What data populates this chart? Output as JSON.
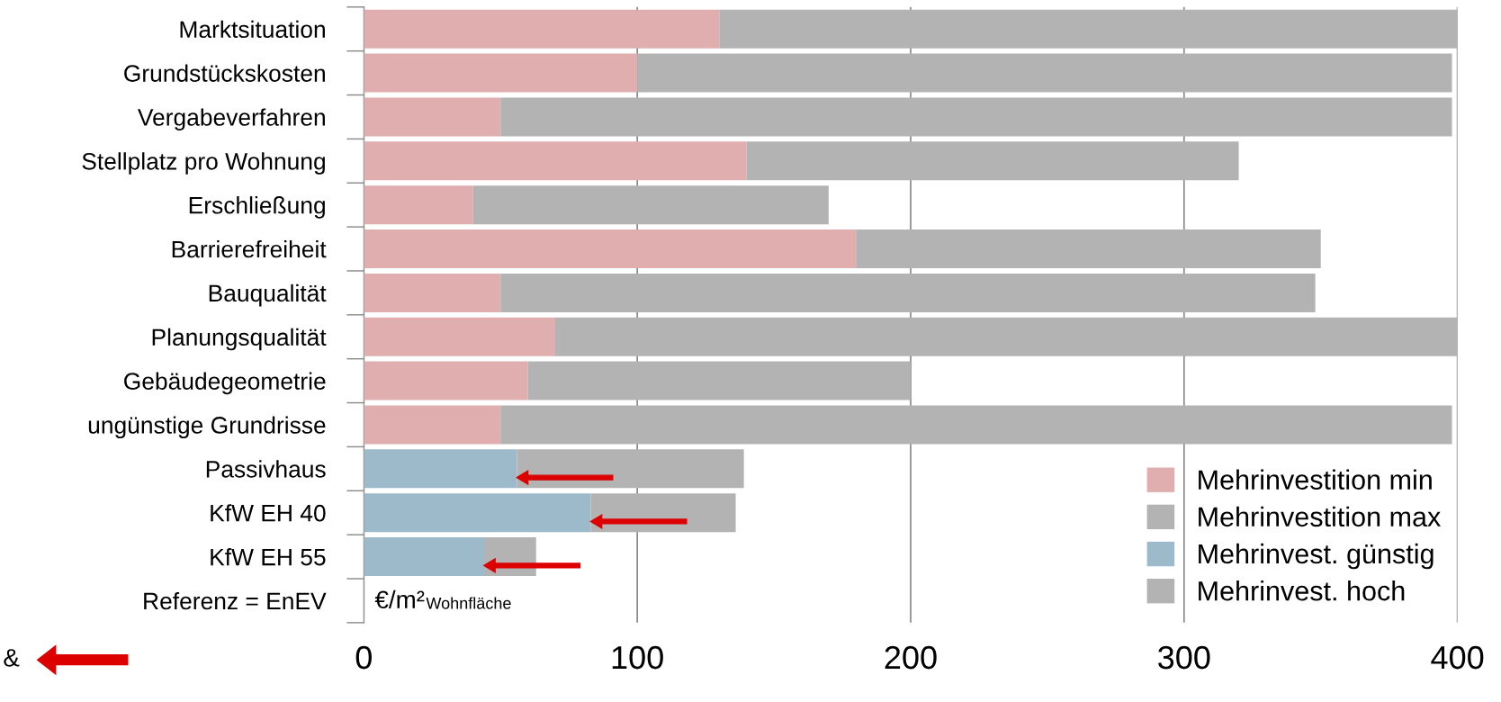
{
  "chart_data": {
    "type": "bar",
    "orientation": "horizontal",
    "stacked": true,
    "categories": [
      "Marktsituation",
      "Grundstückskosten",
      "Vergabeverfahren",
      "Stellplatz pro Wohnung",
      "Erschließung",
      "Barrierefreiheit",
      "Bauqualität",
      "Planungsqualität",
      "Gebäudegeometrie",
      "ungünstige Grundrisse",
      "Passivhaus",
      "KfW EH 40",
      "KfW EH 55",
      "Referenz = EnEV"
    ],
    "series": [
      {
        "name": "Mehrinvestition min",
        "color": "#e0aeae",
        "values": [
          130,
          100,
          50,
          140,
          40,
          180,
          50,
          70,
          60,
          50,
          null,
          null,
          null,
          null
        ]
      },
      {
        "name": "Mehrinvestition max",
        "color": "#b3b3b3",
        "values": [
          270,
          298,
          348,
          180,
          130,
          170,
          298,
          330,
          140,
          348,
          null,
          null,
          null,
          null
        ]
      },
      {
        "name": "Mehrinvest. günstig",
        "color": "#9dbacb",
        "values": [
          null,
          null,
          null,
          null,
          null,
          null,
          null,
          null,
          null,
          null,
          56,
          83,
          44,
          null
        ]
      },
      {
        "name": "Mehrinvest. hoch",
        "color": "#b3b3b3",
        "values": [
          null,
          null,
          null,
          null,
          null,
          null,
          null,
          null,
          null,
          null,
          83,
          53,
          19,
          null
        ]
      }
    ],
    "xlim": [
      0,
      400
    ],
    "xticks": [
      0,
      100,
      200,
      300,
      400
    ],
    "grid": "x",
    "legend": "bottom right",
    "annotations": [
      "€/m²$_{Wohnfläche}$",
      "&"
    ]
  }
}
